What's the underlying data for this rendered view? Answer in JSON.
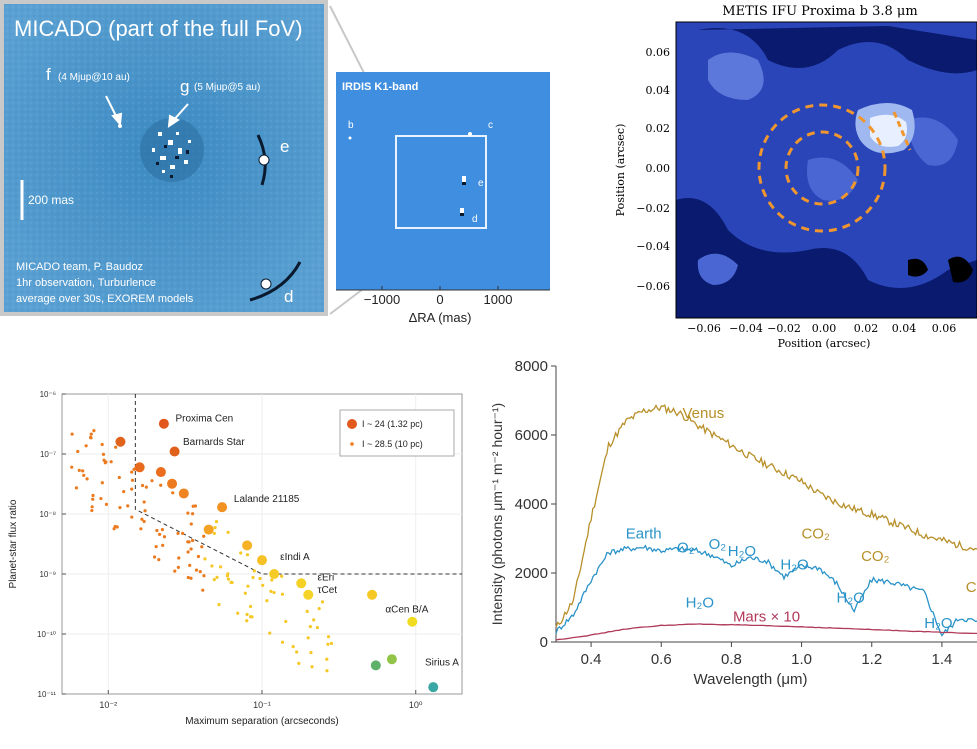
{
  "micado": {
    "title": "MICADO (part of the full FoV)",
    "planet_f": "f",
    "planet_f_note": "(4 Mjup@10 au)",
    "planet_g": "g",
    "planet_g_note": "(5 Mjup@5 au)",
    "planet_e": "e",
    "planet_d": "d",
    "scale_label": "200 mas",
    "credit_lines": [
      "MICADO team, P. Baudoz",
      "1hr observation, Turburlence",
      "average over 30s, EXOREM  models"
    ]
  },
  "irdis": {
    "title": "IRDIS K1-band",
    "labels": [
      "b",
      "c",
      "e",
      "d"
    ],
    "xticks": [
      "−1000",
      "0",
      "1000"
    ],
    "xlabel": "ΔRA (mas)"
  },
  "metis": {
    "title": "METIS IFU Proxima b 3.8 μm",
    "ylabel": "Position (arcsec)",
    "xlabel": "Position (arcsec)",
    "yticks": [
      "0.06",
      "0.04",
      "0.02",
      "0.00",
      "−0.02",
      "−0.04",
      "−0.06"
    ],
    "xticks": [
      "−0.06",
      "−0.04",
      "−0.02",
      "0.00",
      "0.02",
      "0.04",
      "0.06"
    ]
  },
  "colors": {
    "micado_bg": "#4f95c9",
    "irdis_bg": "#3f8ee0",
    "metis_dark": "#0a1a6e",
    "metis_mid": "#3a55c8",
    "metis_ring": "#f0962e",
    "venus": "#b8902a",
    "earth": "#2a93c8",
    "mars": "#b03a5a"
  },
  "chart_data": [
    {
      "type": "scatter",
      "xlabel": "Maximum separation (arcseconds)",
      "ylabel": "Planet-star flux ratio",
      "xscale": "log",
      "yscale": "log",
      "xlim": [
        0.005,
        2
      ],
      "ylim": [
        1e-11,
        1e-06
      ],
      "xtick_labels": [
        "10⁻²",
        "10⁻¹",
        "10⁰"
      ],
      "ytick_labels": [
        "10⁻⁶",
        "10⁻⁷",
        "10⁻⁸",
        "10⁻⁹",
        "10⁻¹⁰",
        "10⁻¹¹"
      ],
      "legend_position": "top-right",
      "legend": [
        "I ~ 24 (1.32 pc)",
        "I ~ 28.5 (10 pc)"
      ],
      "annotations": [
        {
          "text": "Proxima Cen",
          "x": 0.025,
          "y": 3.5e-07
        },
        {
          "text": "Barnards Star",
          "x": 0.028,
          "y": 1.4e-07
        },
        {
          "text": "Lalande 21185",
          "x": 0.06,
          "y": 1.6e-08
        },
        {
          "text": "εIndi A",
          "x": 0.12,
          "y": 1.7e-09
        },
        {
          "text": "εEri",
          "x": 0.21,
          "y": 7.8e-10
        },
        {
          "text": "τCet",
          "x": 0.21,
          "y": 4.8e-10
        },
        {
          "text": "αCen B/A",
          "x": 0.58,
          "y": 2.3e-10
        },
        {
          "text": "Sirius A",
          "x": 1.05,
          "y": 3e-11
        }
      ],
      "points_large": [
        {
          "x": 0.023,
          "y": 3.2e-07,
          "color": "#e2581c"
        },
        {
          "x": 0.027,
          "y": 1.1e-07,
          "color": "#e0611b"
        },
        {
          "x": 0.012,
          "y": 1.6e-07,
          "color": "#e0621b"
        },
        {
          "x": 0.016,
          "y": 6e-08,
          "color": "#e86a1c"
        },
        {
          "x": 0.022,
          "y": 5e-08,
          "color": "#ea6e1d"
        },
        {
          "x": 0.026,
          "y": 3.2e-08,
          "color": "#ec7a1e"
        },
        {
          "x": 0.031,
          "y": 2.2e-08,
          "color": "#ef8420"
        },
        {
          "x": 0.055,
          "y": 1.3e-08,
          "color": "#f19222"
        },
        {
          "x": 0.045,
          "y": 5.5e-09,
          "color": "#f4a223"
        },
        {
          "x": 0.08,
          "y": 3e-09,
          "color": "#f6b224"
        },
        {
          "x": 0.1,
          "y": 1.7e-09,
          "color": "#f5c125"
        },
        {
          "x": 0.12,
          "y": 1e-09,
          "color": "#f6cb26"
        },
        {
          "x": 0.18,
          "y": 7e-10,
          "color": "#f5d126"
        },
        {
          "x": 0.2,
          "y": 4.5e-10,
          "color": "#f6d327"
        },
        {
          "x": 0.52,
          "y": 4.5e-10,
          "color": "#f5c823"
        },
        {
          "x": 0.95,
          "y": 1.6e-10,
          "color": "#f2dc22"
        },
        {
          "x": 0.7,
          "y": 3.8e-11,
          "color": "#92c448"
        },
        {
          "x": 0.55,
          "y": 3e-11,
          "color": "#5fb16a"
        },
        {
          "x": 1.3,
          "y": 1.3e-11,
          "color": "#3aa7a4"
        }
      ],
      "points_small_summary": "many small orange/yellow points along diagonal band",
      "contrast_curve": [
        [
          0.015,
          1e-06
        ],
        [
          0.015,
          1.2e-08
        ],
        [
          0.1,
          1e-09
        ],
        [
          2.0,
          1e-09
        ]
      ]
    },
    {
      "type": "line",
      "xlabel": "Wavelength (μm)",
      "ylabel": "Intensity (photons μm⁻¹ m⁻² hour⁻¹)",
      "xlim": [
        0.3,
        1.5
      ],
      "ylim": [
        0,
        8000
      ],
      "xticks": [
        0.4,
        0.6,
        0.8,
        1.0,
        1.2,
        1.4
      ],
      "yticks": [
        0,
        2000,
        4000,
        6000,
        8000
      ],
      "series": [
        {
          "name": "Venus",
          "x": [
            0.3,
            0.35,
            0.4,
            0.45,
            0.5,
            0.55,
            0.6,
            0.65,
            0.7,
            0.75,
            0.8,
            0.85,
            0.9,
            0.95,
            1.0,
            1.05,
            1.1,
            1.15,
            1.2,
            1.25,
            1.3,
            1.35,
            1.4,
            1.45,
            1.5
          ],
          "y": [
            400,
            1200,
            3600,
            5700,
            6400,
            6700,
            6800,
            6650,
            6300,
            6000,
            5700,
            5400,
            5150,
            4900,
            4650,
            4300,
            4050,
            3850,
            3700,
            3500,
            3300,
            3100,
            2950,
            2800,
            2700
          ]
        },
        {
          "name": "Earth",
          "x": [
            0.3,
            0.35,
            0.4,
            0.45,
            0.5,
            0.55,
            0.6,
            0.65,
            0.7,
            0.75,
            0.8,
            0.85,
            0.9,
            0.95,
            1.0,
            1.05,
            1.1,
            1.15,
            1.2,
            1.25,
            1.3,
            1.35,
            1.4,
            1.45,
            1.5
          ],
          "y": [
            300,
            800,
            1800,
            2600,
            2700,
            2750,
            2650,
            2700,
            2650,
            2500,
            2200,
            2450,
            2350,
            1900,
            2200,
            2150,
            1700,
            900,
            1800,
            1750,
            1600,
            1450,
            200,
            700,
            600
          ]
        },
        {
          "name": "Mars × 10",
          "x": [
            0.3,
            0.4,
            0.5,
            0.6,
            0.7,
            0.8,
            0.9,
            1.0,
            1.1,
            1.2,
            1.3,
            1.4,
            1.5
          ],
          "y": [
            60,
            200,
            380,
            480,
            520,
            500,
            470,
            440,
            400,
            360,
            320,
            280,
            250
          ]
        }
      ],
      "annotations": [
        {
          "text": "Venus",
          "x": 0.72,
          "y": 6500
        },
        {
          "text": "CO₂",
          "x": 1.04,
          "y": 3000
        },
        {
          "text": "CO₂",
          "x": 1.21,
          "y": 2350
        },
        {
          "text": "CO",
          "x": 1.5,
          "y": 1450
        },
        {
          "text": "Earth",
          "x": 0.55,
          "y": 3000
        },
        {
          "text": "O₂",
          "x": 0.67,
          "y": 2600
        },
        {
          "text": "O₂",
          "x": 0.76,
          "y": 2700
        },
        {
          "text": "H₂O",
          "x": 0.83,
          "y": 2500
        },
        {
          "text": "H₂O",
          "x": 0.98,
          "y": 2100
        },
        {
          "text": "H₂O",
          "x": 0.71,
          "y": 1000
        },
        {
          "text": "H₂O",
          "x": 1.14,
          "y": 1150
        },
        {
          "text": "H₂O",
          "x": 1.39,
          "y": 400
        },
        {
          "text": "Mars × 10",
          "x": 0.9,
          "y": 600
        }
      ]
    }
  ]
}
